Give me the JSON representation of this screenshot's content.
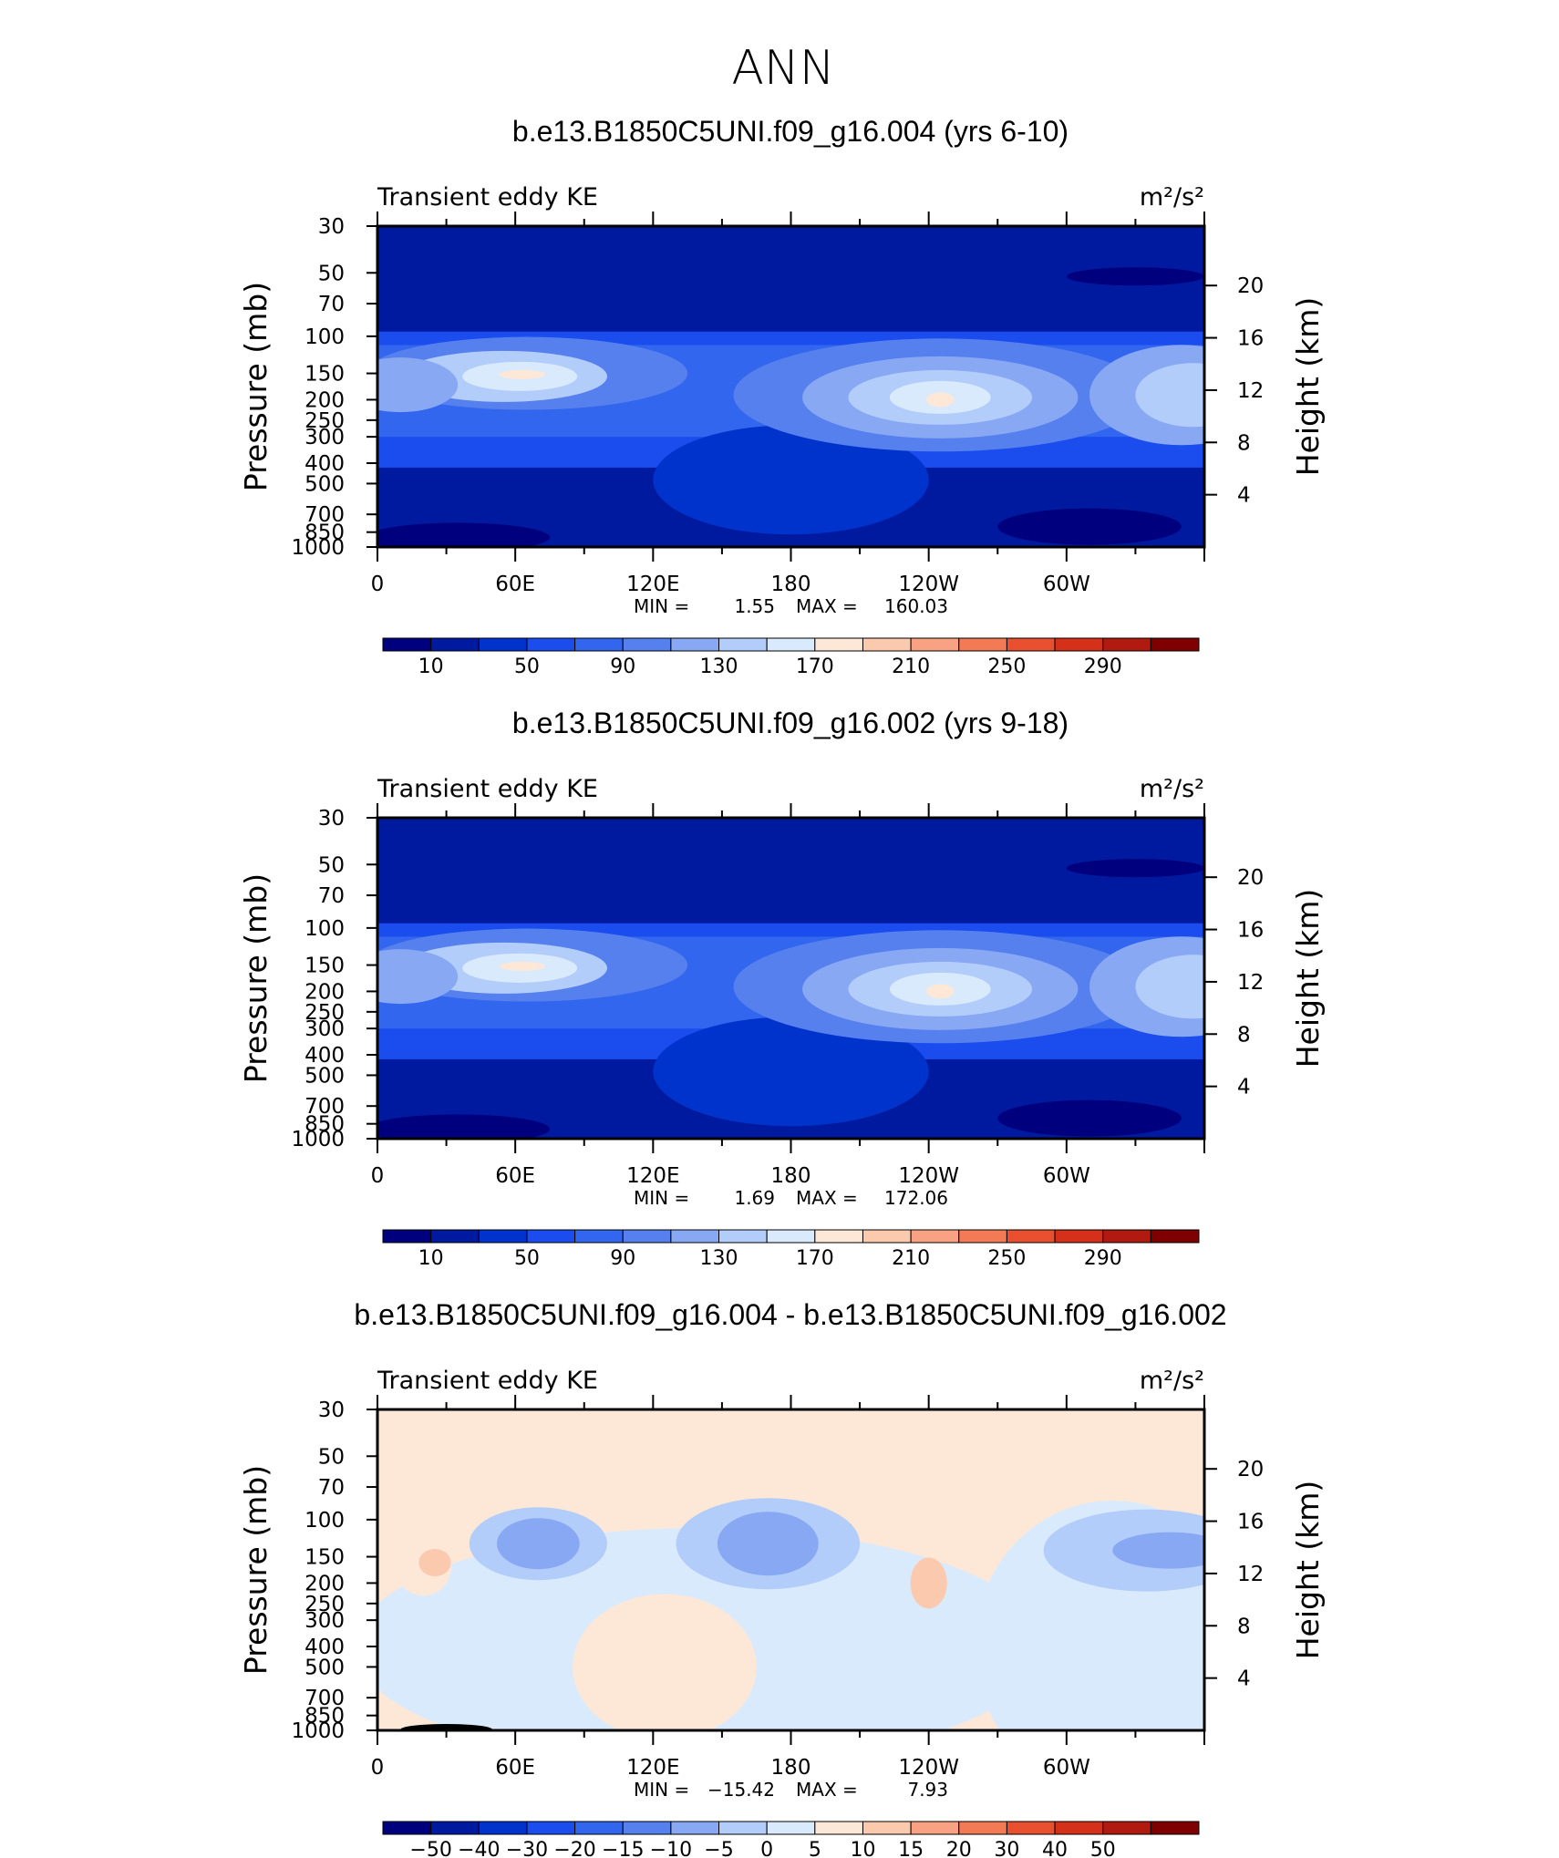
{
  "page_title": "ANN",
  "chart_data": [
    {
      "type": "heatmap",
      "title": "b.e13.B1850C5UNI.f09_g16.004 (yrs 6-10)",
      "left_label": "Transient eddy KE",
      "units": "m²/s²",
      "xlabel": "",
      "ylabel": "Pressure (mb)",
      "y2label": "Height (km)",
      "x_ticks": [
        "0",
        "60E",
        "120E",
        "180",
        "120W",
        "60W"
      ],
      "y_ticks": [
        "30",
        "50",
        "70",
        "100",
        "150",
        "200",
        "250",
        "300",
        "400",
        "500",
        "700",
        "850",
        "1000"
      ],
      "y_ticks_values": [
        30,
        50,
        70,
        100,
        150,
        200,
        250,
        300,
        400,
        500,
        700,
        850,
        1000
      ],
      "y2_ticks": [
        "20",
        "16",
        "12",
        "8",
        "4"
      ],
      "y2_ticks_values": [
        20,
        16,
        12,
        8,
        4
      ],
      "ylim": [
        1000,
        30
      ],
      "xlim": [
        0,
        360
      ],
      "min_label": "MIN =",
      "min_value": "1.55",
      "max_label": "MAX =",
      "max_value": "160.03",
      "colorbar_labels": [
        "10",
        "50",
        "90",
        "130",
        "170",
        "210",
        "250",
        "290"
      ],
      "colorbar_colors": [
        "#00007f",
        "#001a9f",
        "#0033cc",
        "#1a4cee",
        "#3366ee",
        "#5580ee",
        "#88a8f4",
        "#b3cdfa",
        "#daeafd",
        "#fde8d8",
        "#fbc9ae",
        "#f8a283",
        "#f27a55",
        "#e8502f",
        "#d4301a",
        "#b01a10",
        "#7f0000"
      ]
    },
    {
      "type": "heatmap",
      "title": "b.e13.B1850C5UNI.f09_g16.002 (yrs 9-18)",
      "left_label": "Transient eddy KE",
      "units": "m²/s²",
      "xlabel": "",
      "ylabel": "Pressure (mb)",
      "y2label": "Height (km)",
      "x_ticks": [
        "0",
        "60E",
        "120E",
        "180",
        "120W",
        "60W"
      ],
      "y_ticks": [
        "30",
        "50",
        "70",
        "100",
        "150",
        "200",
        "250",
        "300",
        "400",
        "500",
        "700",
        "850",
        "1000"
      ],
      "y_ticks_values": [
        30,
        50,
        70,
        100,
        150,
        200,
        250,
        300,
        400,
        500,
        700,
        850,
        1000
      ],
      "y2_ticks": [
        "20",
        "16",
        "12",
        "8",
        "4"
      ],
      "y2_ticks_values": [
        20,
        16,
        12,
        8,
        4
      ],
      "ylim": [
        1000,
        30
      ],
      "xlim": [
        0,
        360
      ],
      "min_label": "MIN =",
      "min_value": "1.69",
      "max_label": "MAX =",
      "max_value": "172.06",
      "colorbar_labels": [
        "10",
        "50",
        "90",
        "130",
        "170",
        "210",
        "250",
        "290"
      ],
      "colorbar_colors": [
        "#00007f",
        "#001a9f",
        "#0033cc",
        "#1a4cee",
        "#3366ee",
        "#5580ee",
        "#88a8f4",
        "#b3cdfa",
        "#daeafd",
        "#fde8d8",
        "#fbc9ae",
        "#f8a283",
        "#f27a55",
        "#e8502f",
        "#d4301a",
        "#b01a10",
        "#7f0000"
      ]
    },
    {
      "type": "heatmap",
      "title": "b.e13.B1850C5UNI.f09_g16.004 - b.e13.B1850C5UNI.f09_g16.002",
      "left_label": "Transient eddy KE",
      "units": "m²/s²",
      "xlabel": "",
      "ylabel": "Pressure (mb)",
      "y2label": "Height (km)",
      "x_ticks": [
        "0",
        "60E",
        "120E",
        "180",
        "120W",
        "60W"
      ],
      "y_ticks": [
        "30",
        "50",
        "70",
        "100",
        "150",
        "200",
        "250",
        "300",
        "400",
        "500",
        "700",
        "850",
        "1000"
      ],
      "y_ticks_values": [
        30,
        50,
        70,
        100,
        150,
        200,
        250,
        300,
        400,
        500,
        700,
        850,
        1000
      ],
      "y2_ticks": [
        "20",
        "16",
        "12",
        "8",
        "4"
      ],
      "y2_ticks_values": [
        20,
        16,
        12,
        8,
        4
      ],
      "ylim": [
        1000,
        30
      ],
      "xlim": [
        0,
        360
      ],
      "min_label": "MIN =",
      "min_value": "−15.42",
      "max_label": "MAX =",
      "max_value": "7.93",
      "colorbar_labels": [
        "−50",
        "−40",
        "−30",
        "−20",
        "−15",
        "−10",
        "−5",
        "0",
        "5",
        "10",
        "15",
        "20",
        "30",
        "40",
        "50"
      ],
      "colorbar_colors": [
        "#00007f",
        "#001a9f",
        "#0033cc",
        "#1a4cee",
        "#3366ee",
        "#5580ee",
        "#88a8f4",
        "#b3cdfa",
        "#daeafd",
        "#fde8d8",
        "#fbc9ae",
        "#f8a283",
        "#f27a55",
        "#e8502f",
        "#d4301a",
        "#b01a10",
        "#7f0000"
      ]
    }
  ]
}
